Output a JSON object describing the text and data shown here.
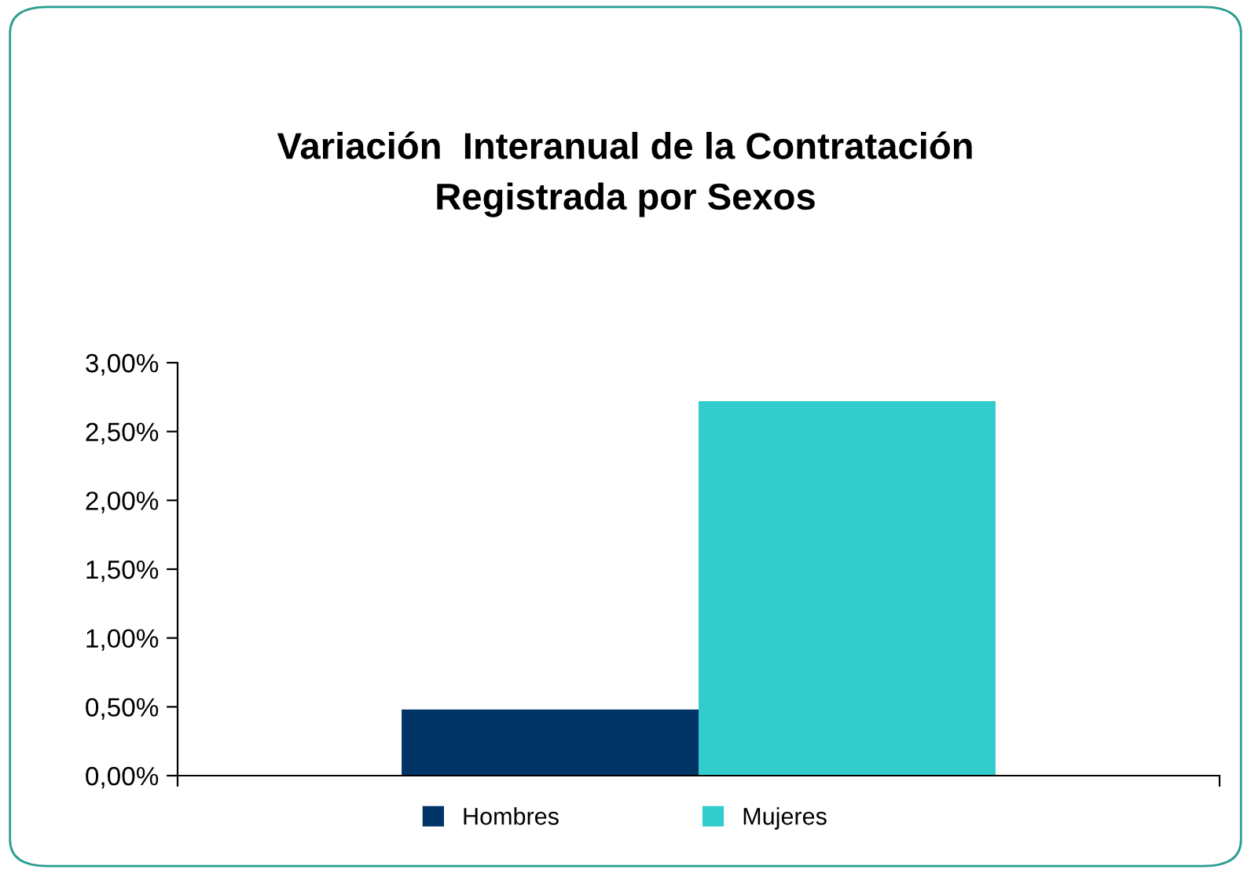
{
  "chart_data": {
    "type": "bar",
    "title": "Variación  Interanual de la Contratación\nRegistrada por Sexos",
    "categories": [
      null
    ],
    "series": [
      {
        "name": "Hombres",
        "color": "#003366",
        "values": [
          0.48
        ]
      },
      {
        "name": "Mujeres",
        "color": "#33cccc",
        "values": [
          2.72
        ]
      }
    ],
    "ylim": [
      0,
      3
    ],
    "yticks": [
      {
        "value": 0,
        "label": "0,00%"
      },
      {
        "value": 0.5,
        "label": "0,50%"
      },
      {
        "value": 1,
        "label": "1,00%"
      },
      {
        "value": 1.5,
        "label": "1,50%"
      },
      {
        "value": 2,
        "label": "2,00%"
      },
      {
        "value": 2.5,
        "label": "2,50%"
      },
      {
        "value": 3,
        "label": "3,00%"
      }
    ],
    "grid": false,
    "legend": "bottom"
  }
}
